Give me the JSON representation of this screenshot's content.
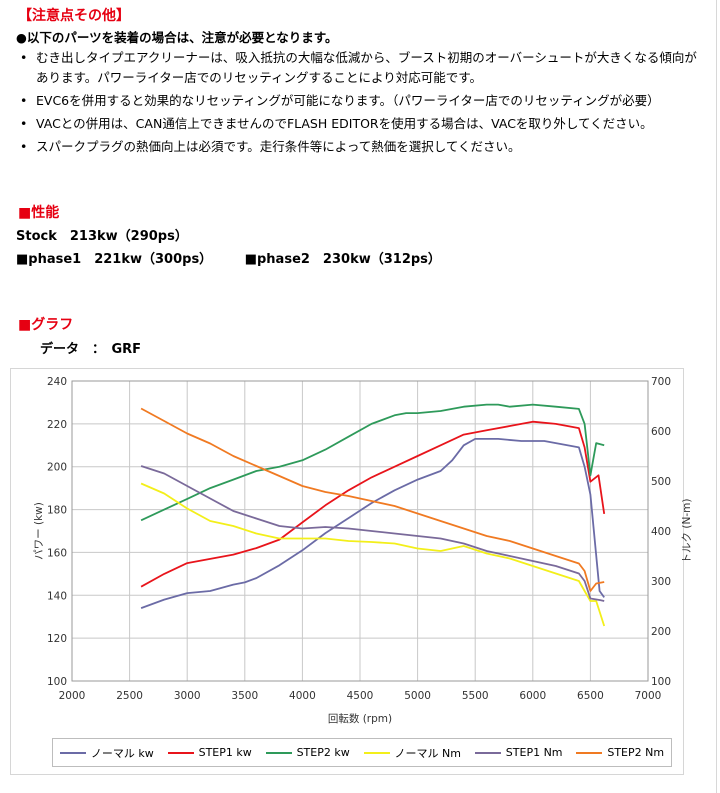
{
  "caution": {
    "title": "【注意点その他】",
    "lead": "●以下のパーツを装着の場合は、注意が必要となります。",
    "bullet": "•",
    "items": [
      "むき出しタイプエアクリーナーは、吸入抵抗の大幅な低減から、ブースト初期のオーバーシュートが大きくなる傾向があります。パワーライター店でのリセッティングすることにより対応可能です。",
      "EVC6を併用すると効果的なリセッティングが可能になります。（パワーライター店でのリセッティングが必要）",
      "VACとの併用は、CAN通信上できませんのでFLASH EDITORを使用する場合は、VACを取り外してください。",
      "スパークプラグの熱価向上は必須です。走行条件等によって熱価を選択してください。"
    ]
  },
  "performance": {
    "title": "■性能",
    "stock": "Stock　213kw（290ps）",
    "phase1": "■phase1　221kw（300ps）",
    "phase2": "■phase2　230kw（312ps）"
  },
  "graph": {
    "title": "■グラフ",
    "data_label": "データ　：　GRF"
  },
  "chart_data": {
    "type": "line",
    "xlabel": "回転数 (rpm)",
    "ylabel": "パワー (kw)",
    "y2label": "トルク (N-m)",
    "xlim": [
      2000,
      7000
    ],
    "ylim": [
      100,
      240
    ],
    "y2lim": [
      100,
      700
    ],
    "xticks": [
      2000,
      2500,
      3000,
      3500,
      4000,
      4500,
      5000,
      5500,
      6000,
      6500,
      7000
    ],
    "yticks": [
      100,
      120,
      140,
      160,
      180,
      200,
      220,
      240
    ],
    "y2ticks": [
      100,
      200,
      300,
      400,
      500,
      600,
      700
    ],
    "grid": true,
    "legend_position": "bottom",
    "series": [
      {
        "name": "ノーマル kw",
        "axis": "left",
        "color": "#6b6ba6",
        "x": [
          2600,
          2800,
          3000,
          3200,
          3400,
          3500,
          3600,
          3800,
          4000,
          4200,
          4400,
          4600,
          4800,
          5000,
          5200,
          5300,
          5400,
          5500,
          5700,
          5900,
          6100,
          6300,
          6400,
          6450,
          6500,
          6580,
          6620
        ],
        "y": [
          134,
          138,
          141,
          142,
          145,
          146,
          148,
          154,
          161,
          169,
          176,
          183,
          189,
          194,
          198,
          203,
          210,
          213,
          213,
          212,
          212,
          210,
          209,
          200,
          187,
          142,
          139
        ]
      },
      {
        "name": "STEP1 kw",
        "axis": "left",
        "color": "#e8141b",
        "x": [
          2600,
          2800,
          3000,
          3200,
          3400,
          3600,
          3800,
          4000,
          4200,
          4400,
          4600,
          4800,
          5000,
          5200,
          5400,
          5600,
          5800,
          6000,
          6200,
          6400,
          6450,
          6500,
          6570,
          6620
        ],
        "y": [
          144,
          150,
          155,
          157,
          159,
          162,
          166,
          174,
          182,
          189,
          195,
          200,
          205,
          210,
          215,
          217,
          219,
          221,
          220,
          218,
          209,
          193,
          196,
          178
        ]
      },
      {
        "name": "STEP2 kw",
        "axis": "left",
        "color": "#2e9a5a",
        "x": [
          2600,
          2800,
          3000,
          3200,
          3400,
          3600,
          3800,
          4000,
          4200,
          4400,
          4600,
          4800,
          4900,
          5000,
          5200,
          5400,
          5600,
          5700,
          5800,
          6000,
          6200,
          6400,
          6450,
          6500,
          6550,
          6620
        ],
        "y": [
          175,
          180,
          185,
          190,
          194,
          198,
          200,
          203,
          208,
          214,
          220,
          224,
          225,
          225,
          226,
          228,
          229,
          229,
          228,
          229,
          228,
          227,
          220,
          196,
          211,
          210
        ]
      },
      {
        "name": "ノーマル Nm",
        "axis": "right",
        "color": "#f3ef1a",
        "x": [
          2600,
          2800,
          3000,
          3200,
          3400,
          3600,
          3800,
          4000,
          4200,
          4400,
          4600,
          4800,
          5000,
          5200,
          5400,
          5600,
          5800,
          6000,
          6200,
          6400,
          6450,
          6500,
          6550,
          6620
        ],
        "y": [
          495,
          475,
          445,
          420,
          410,
          395,
          385,
          385,
          385,
          380,
          378,
          375,
          365,
          360,
          370,
          355,
          345,
          330,
          315,
          300,
          280,
          260,
          260,
          210
        ]
      },
      {
        "name": "STEP1 Nm",
        "axis": "right",
        "color": "#7a6a9a",
        "x": [
          2600,
          2800,
          3000,
          3200,
          3400,
          3600,
          3800,
          4000,
          4200,
          4400,
          4600,
          4800,
          5000,
          5200,
          5400,
          5600,
          5800,
          6000,
          6200,
          6400,
          6450,
          6500,
          6580,
          6620
        ],
        "y": [
          530,
          515,
          490,
          465,
          440,
          425,
          410,
          405,
          408,
          405,
          400,
          395,
          390,
          385,
          375,
          360,
          350,
          340,
          330,
          315,
          300,
          265,
          262,
          260
        ]
      },
      {
        "name": "STEP2 Nm",
        "axis": "right",
        "color": "#f07a22",
        "x": [
          2600,
          2800,
          3000,
          3200,
          3400,
          3600,
          3800,
          4000,
          4200,
          4400,
          4600,
          4800,
          5000,
          5200,
          5400,
          5600,
          5800,
          6000,
          6200,
          6400,
          6450,
          6500,
          6550,
          6620
        ],
        "y": [
          645,
          620,
          595,
          575,
          550,
          530,
          510,
          490,
          478,
          470,
          460,
          450,
          435,
          420,
          405,
          390,
          380,
          365,
          350,
          335,
          320,
          280,
          295,
          298
        ]
      }
    ]
  }
}
